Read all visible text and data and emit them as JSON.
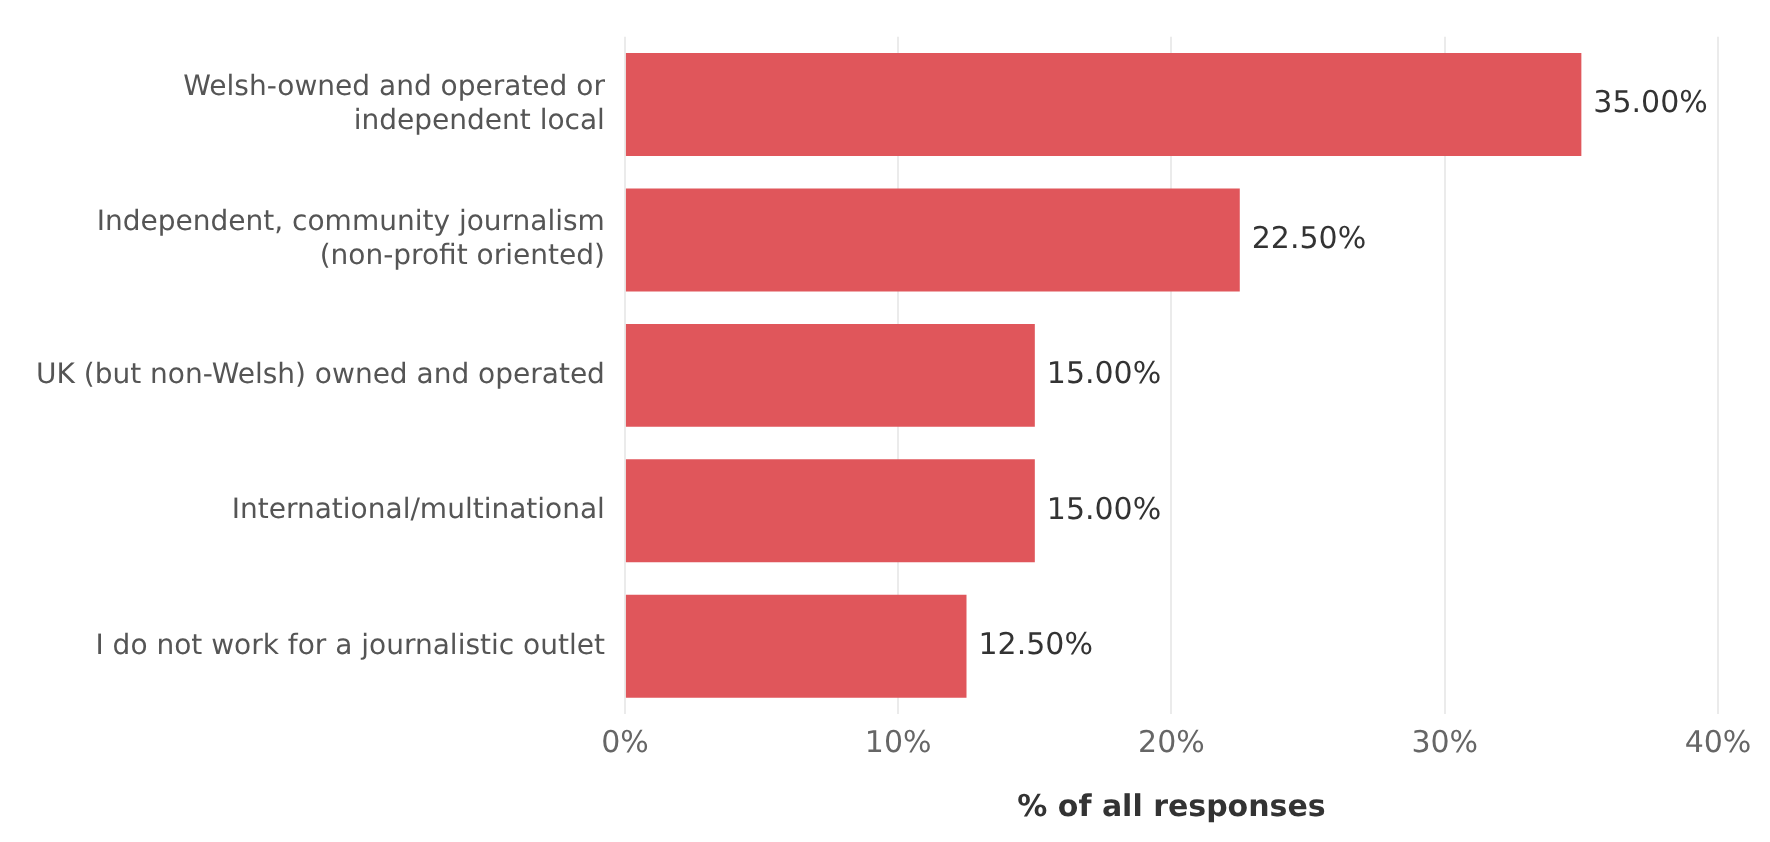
{
  "chart_data": {
    "type": "bar",
    "orientation": "horizontal",
    "xlabel": "% of all responses",
    "categories": [
      "Welsh-owned and operated or independent local",
      "Independent, community journalism (non-profit oriented)",
      "UK (but non-Welsh) owned and operated",
      "International/multinational",
      "I do not work for a journalistic outlet"
    ],
    "values": [
      35,
      22.5,
      15,
      15,
      12.5
    ],
    "value_labels": [
      "35.00%",
      "22.50%",
      "15.00%",
      "15.00%",
      "12.50%"
    ],
    "color": "#e0565b",
    "xlim": [
      0,
      40
    ],
    "xticks": [
      {
        "value": 0,
        "label": "0%"
      },
      {
        "value": 10,
        "label": "10%"
      },
      {
        "value": 20,
        "label": "20%"
      },
      {
        "value": 30,
        "label": "30%"
      },
      {
        "value": 40,
        "label": "40%"
      }
    ],
    "grid": "x",
    "legend": false
  }
}
